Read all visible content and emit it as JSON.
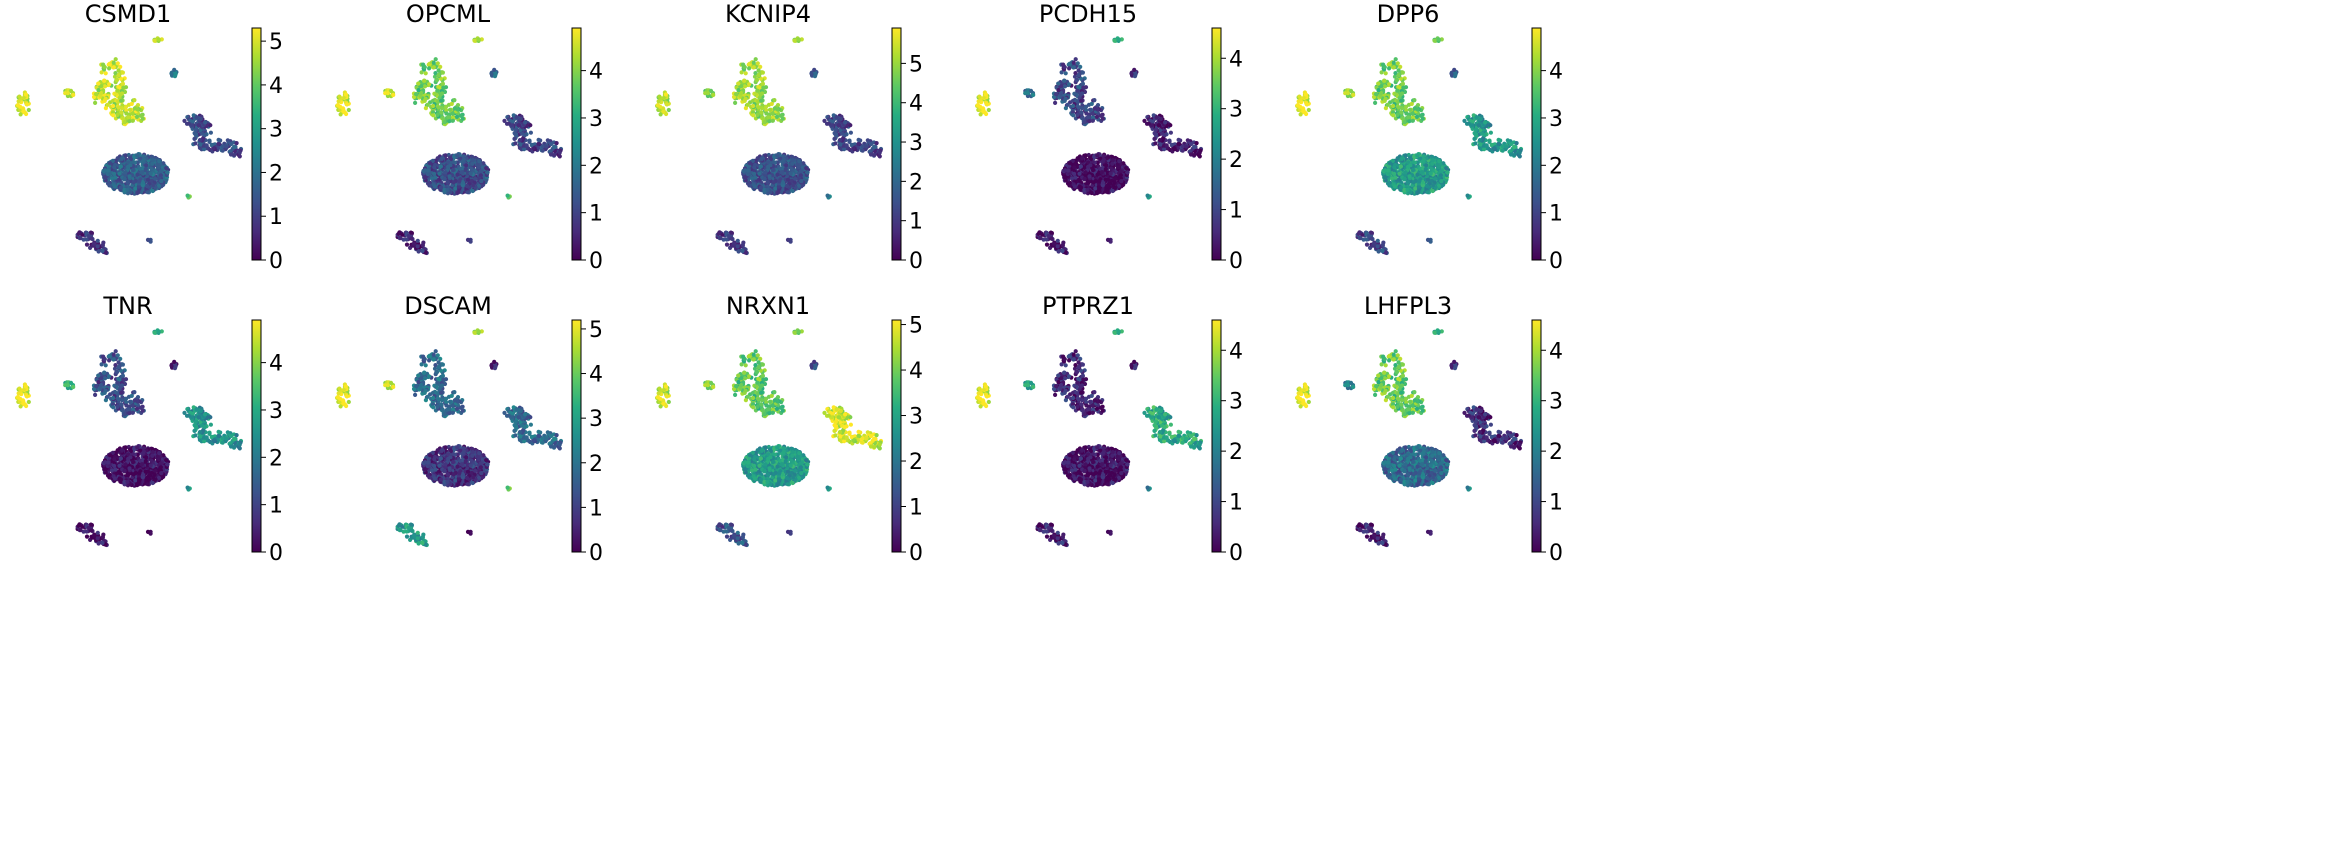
{
  "chart_data": {
    "type": "scatter",
    "description_kind": "umap-gene-expression-grid",
    "colormap": "viridis",
    "colormap_stops": [
      "#440154",
      "#472c7a",
      "#3b518b",
      "#2c718e",
      "#21908d",
      "#27ad81",
      "#5cc863",
      "#aadc32",
      "#fde725"
    ],
    "clusters": [
      "left-isolate",
      "small-left",
      "neuron-arm",
      "top-right-dot",
      "small-right-dot",
      "opc-arc",
      "main-blob",
      "bottom-left",
      "small-bottom",
      "right-isolate"
    ],
    "panels": [
      {
        "gene": "CSMD1",
        "vmax": 5.3,
        "ticks": [
          0,
          1,
          2,
          3,
          4,
          5
        ],
        "expression": [
          5.0,
          4.6,
          4.8,
          4.5,
          2.0,
          1.2,
          1.6,
          0.8,
          1.4,
          4.0
        ]
      },
      {
        "gene": "OPCML",
        "vmax": 4.9,
        "ticks": [
          0,
          1,
          2,
          3,
          4
        ],
        "expression": [
          4.7,
          4.3,
          3.8,
          4.0,
          1.5,
          1.0,
          1.2,
          0.5,
          1.0,
          3.6
        ]
      },
      {
        "gene": "KCNIP4",
        "vmax": 5.9,
        "ticks": [
          0,
          1,
          2,
          3,
          4,
          5
        ],
        "expression": [
          5.3,
          4.5,
          5.0,
          4.8,
          1.5,
          1.2,
          1.5,
          1.0,
          1.2,
          2.5
        ]
      },
      {
        "gene": "PCDH15",
        "vmax": 4.6,
        "ticks": [
          0,
          1,
          2,
          3,
          4
        ],
        "expression": [
          4.5,
          1.5,
          1.0,
          2.6,
          0.5,
          0.4,
          0.1,
          0.3,
          0.5,
          2.5
        ]
      },
      {
        "gene": "DPP6",
        "vmax": 4.9,
        "ticks": [
          0,
          1,
          2,
          3,
          4
        ],
        "expression": [
          4.8,
          4.0,
          3.8,
          3.5,
          1.3,
          2.6,
          2.7,
          1.0,
          1.5,
          2.7
        ]
      },
      {
        "gene": "TNR",
        "vmax": 4.9,
        "ticks": [
          0,
          1,
          2,
          3,
          4
        ],
        "expression": [
          4.8,
          3.0,
          1.2,
          2.7,
          0.3,
          2.5,
          0.2,
          0.2,
          0.2,
          2.6
        ]
      },
      {
        "gene": "DSCAM",
        "vmax": 5.2,
        "ticks": [
          0,
          1,
          2,
          3,
          4,
          5
        ],
        "expression": [
          5.0,
          4.5,
          1.8,
          4.2,
          0.3,
          1.8,
          0.8,
          2.8,
          0.2,
          4.0
        ]
      },
      {
        "gene": "NRXN1",
        "vmax": 5.1,
        "ticks": [
          0,
          1,
          2,
          3,
          4,
          5
        ],
        "expression": [
          4.7,
          4.0,
          3.8,
          3.8,
          1.0,
          4.8,
          2.8,
          1.3,
          1.0,
          2.8
        ]
      },
      {
        "gene": "PTPRZ1",
        "vmax": 4.6,
        "ticks": [
          0,
          1,
          2,
          3,
          4
        ],
        "expression": [
          4.5,
          2.5,
          0.5,
          2.6,
          0.2,
          2.8,
          0.2,
          0.4,
          0.3,
          2.0
        ]
      },
      {
        "gene": "LHFPL3",
        "vmax": 4.6,
        "ticks": [
          0,
          1,
          2,
          3,
          4
        ],
        "expression": [
          4.5,
          1.8,
          3.5,
          2.6,
          0.5,
          0.6,
          1.6,
          0.4,
          0.5,
          2.2
        ]
      }
    ]
  }
}
